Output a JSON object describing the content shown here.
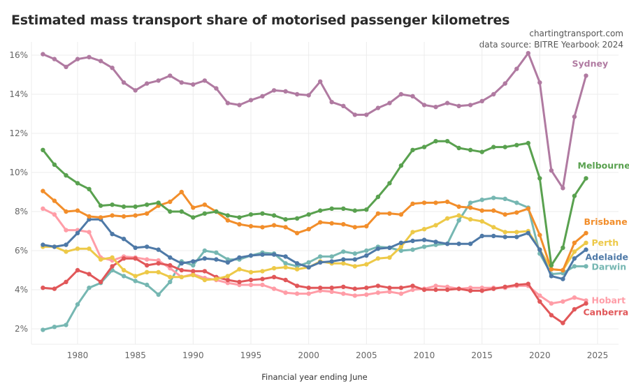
{
  "title": "Estimated mass transport share of motorised passenger kilometres",
  "credit": "chartingtransport.com",
  "source": "data source: BITRE Yearbook 2024",
  "chart_data": {
    "type": "line",
    "title": "Estimated mass transport share of motorised passenger kilometres",
    "xlabel": "Financial year ending June",
    "ylabel": "",
    "xlim": [
      1976,
      2027
    ],
    "ylim": [
      1.2,
      16.8
    ],
    "x_ticks": [
      1980,
      1985,
      1990,
      1995,
      2000,
      2005,
      2010,
      2015,
      2020,
      2025
    ],
    "y_ticks": [
      2,
      4,
      6,
      8,
      10,
      12,
      14,
      16
    ],
    "y_tick_labels": [
      "2%",
      "4%",
      "6%",
      "8%",
      "10%",
      "12%",
      "14%",
      "16%"
    ],
    "grid": true,
    "legend": "direct labels at line ends (right)",
    "x": [
      1977,
      1978,
      1979,
      1980,
      1981,
      1982,
      1983,
      1984,
      1985,
      1986,
      1987,
      1988,
      1989,
      1990,
      1991,
      1992,
      1993,
      1994,
      1995,
      1996,
      1997,
      1998,
      1999,
      2000,
      2001,
      2002,
      2003,
      2004,
      2005,
      2006,
      2007,
      2008,
      2009,
      2010,
      2011,
      2012,
      2013,
      2014,
      2015,
      2016,
      2017,
      2018,
      2019,
      2020,
      2021,
      2022,
      2023,
      2024
    ],
    "series": [
      {
        "name": "Sydney",
        "color": "#b07aa1",
        "values": [
          16.05,
          15.8,
          15.4,
          15.8,
          15.9,
          15.7,
          15.35,
          14.6,
          14.2,
          14.55,
          14.7,
          14.95,
          14.6,
          14.5,
          14.7,
          14.3,
          13.55,
          13.45,
          13.7,
          13.9,
          14.2,
          14.15,
          14.0,
          13.95,
          14.65,
          13.6,
          13.4,
          12.95,
          12.95,
          13.3,
          13.55,
          14.0,
          13.9,
          13.45,
          13.35,
          13.55,
          13.4,
          13.45,
          13.65,
          14.0,
          14.55,
          15.3,
          16.1,
          14.6,
          10.1,
          9.2,
          12.85,
          14.95
        ]
      },
      {
        "name": "Melbourne",
        "color": "#59a14f",
        "values": [
          11.15,
          10.4,
          9.85,
          9.45,
          9.15,
          8.3,
          8.35,
          8.25,
          8.25,
          8.35,
          8.45,
          8.0,
          8.0,
          7.7,
          7.9,
          8.0,
          7.8,
          7.7,
          7.85,
          7.9,
          7.8,
          7.6,
          7.65,
          7.85,
          8.05,
          8.15,
          8.15,
          8.05,
          8.1,
          8.75,
          9.45,
          10.35,
          11.15,
          11.3,
          11.6,
          11.6,
          11.25,
          11.15,
          11.05,
          11.3,
          11.3,
          11.4,
          11.5,
          9.7,
          5.25,
          6.15,
          8.8,
          9.7
        ]
      },
      {
        "name": "Brisbane",
        "color": "#f28e2b",
        "values": [
          9.05,
          8.55,
          8.0,
          8.05,
          7.75,
          7.7,
          7.8,
          7.75,
          7.8,
          7.9,
          8.3,
          8.5,
          9.0,
          8.2,
          8.35,
          8.0,
          7.55,
          7.35,
          7.25,
          7.2,
          7.3,
          7.2,
          6.9,
          7.1,
          7.45,
          7.4,
          7.35,
          7.2,
          7.25,
          7.9,
          7.9,
          7.85,
          8.4,
          8.45,
          8.45,
          8.5,
          8.25,
          8.2,
          8.05,
          8.05,
          7.85,
          7.95,
          8.15,
          6.8,
          5.05,
          5.0,
          6.4,
          6.9
        ]
      },
      {
        "name": "Perth",
        "color": "#edc948",
        "values": [
          6.2,
          6.2,
          5.95,
          6.1,
          6.1,
          5.55,
          5.65,
          5.0,
          4.7,
          4.9,
          4.9,
          4.65,
          4.65,
          4.75,
          4.5,
          4.55,
          4.7,
          5.05,
          4.9,
          4.95,
          5.1,
          5.15,
          5.05,
          5.15,
          5.45,
          5.35,
          5.35,
          5.2,
          5.3,
          5.6,
          5.65,
          6.2,
          6.95,
          7.1,
          7.3,
          7.65,
          7.8,
          7.6,
          7.5,
          7.2,
          6.95,
          6.95,
          7.0,
          6.05,
          5.05,
          5.0,
          5.95,
          6.4
        ]
      },
      {
        "name": "Adelaide",
        "color": "#4e79a7",
        "values": [
          6.3,
          6.2,
          6.3,
          6.9,
          7.6,
          7.6,
          6.85,
          6.6,
          6.15,
          6.2,
          6.05,
          5.65,
          5.35,
          5.45,
          5.6,
          5.55,
          5.4,
          5.65,
          5.75,
          5.8,
          5.8,
          5.7,
          5.35,
          5.15,
          5.4,
          5.45,
          5.55,
          5.55,
          5.75,
          6.1,
          6.15,
          6.4,
          6.5,
          6.55,
          6.45,
          6.35,
          6.35,
          6.35,
          6.75,
          6.75,
          6.7,
          6.7,
          6.9,
          6.05,
          4.7,
          4.55,
          5.6,
          6.05
        ]
      },
      {
        "name": "Darwin",
        "color": "#76b7b2",
        "values": [
          1.95,
          2.1,
          2.2,
          3.25,
          4.1,
          4.35,
          5.0,
          4.7,
          4.45,
          4.25,
          3.75,
          4.4,
          5.45,
          5.25,
          6.0,
          5.9,
          5.55,
          5.55,
          5.75,
          5.9,
          5.85,
          5.35,
          5.2,
          5.4,
          5.7,
          5.7,
          5.95,
          5.85,
          6.0,
          6.2,
          6.15,
          6.0,
          6.05,
          6.2,
          6.3,
          6.35,
          7.55,
          8.45,
          8.6,
          8.7,
          8.65,
          8.45,
          8.2,
          5.85,
          4.8,
          4.85,
          5.2,
          5.2
        ]
      },
      {
        "name": "Hobart",
        "color": "#ff9da7",
        "values": [
          8.15,
          7.85,
          7.05,
          7.05,
          6.95,
          5.65,
          5.5,
          5.7,
          5.65,
          5.55,
          5.5,
          5.1,
          4.65,
          4.8,
          4.6,
          4.5,
          4.35,
          4.25,
          4.25,
          4.25,
          4.05,
          3.85,
          3.8,
          3.8,
          3.95,
          3.9,
          3.8,
          3.7,
          3.75,
          3.85,
          3.9,
          3.8,
          4.0,
          4.05,
          4.2,
          4.15,
          4.05,
          4.1,
          4.1,
          4.1,
          4.1,
          4.2,
          4.2,
          3.7,
          3.3,
          3.4,
          3.6,
          3.45
        ]
      },
      {
        "name": "Canberra",
        "color": "#e15759",
        "values": [
          4.1,
          4.05,
          4.4,
          5.0,
          4.8,
          4.4,
          5.2,
          5.6,
          5.6,
          5.25,
          5.35,
          5.25,
          5.0,
          4.95,
          4.95,
          4.65,
          4.5,
          4.4,
          4.5,
          4.55,
          4.65,
          4.5,
          4.2,
          4.1,
          4.1,
          4.1,
          4.15,
          4.05,
          4.1,
          4.2,
          4.1,
          4.1,
          4.2,
          4.0,
          4.0,
          4.0,
          4.05,
          3.95,
          3.95,
          4.05,
          4.15,
          4.25,
          4.3,
          3.4,
          2.7,
          2.3,
          3.0,
          3.3
        ]
      }
    ]
  }
}
